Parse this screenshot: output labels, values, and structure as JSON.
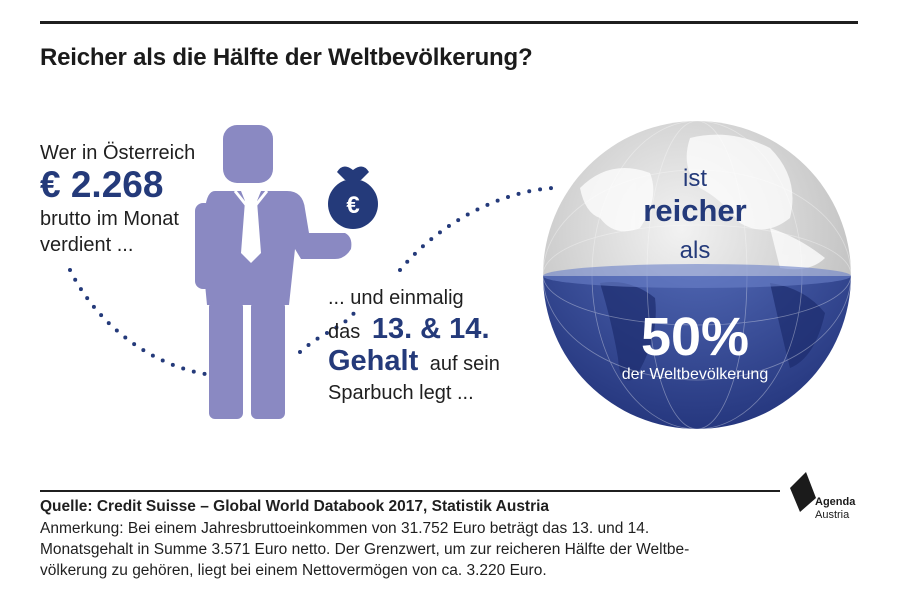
{
  "title": "Reicher als die Hälfte der Weltbevölkerung?",
  "left_text": {
    "line1": "Wer in Österreich",
    "amount": "€ 2.268",
    "line3": "brutto im Monat",
    "line4": "verdient ..."
  },
  "middle_text": {
    "line1": "... und einmalig",
    "line2_prefix": "das",
    "line2_big": "13. & 14.",
    "line3_big": "Gehalt",
    "line3_suffix": "auf sein",
    "line4": "Sparbuch legt ..."
  },
  "globe": {
    "ist": "ist",
    "reicher": "reicher",
    "als": "als",
    "percent": "50%",
    "sub": "der Weltbevölkerung"
  },
  "icons": {
    "money_bag_symbol": "€",
    "person": "person-icon",
    "globe": "globe-icon"
  },
  "footer": {
    "source": "Quelle: Credit Suisse – Global World Databook 2017, Statistik Austria",
    "note_line1": "Anmerkung: Bei einem Jahresbruttoeinkommen von 31.752 Euro beträgt das 13. und 14.",
    "note_line2": "Monatsgehalt in Summe 3.571 Euro netto. Der Grenzwert, um zur reicheren Hälfte der Weltbe-",
    "note_line3": "völkerung zu gehören, liegt bei einem Nettovermögen von ca. 3.220 Euro."
  },
  "logo": {
    "line1": "Agenda",
    "line2": "Austria"
  },
  "colors": {
    "accent": "#243a7a",
    "figure": "#8a89c2",
    "globe_lower": "#3f57a8",
    "globe_upper": "#d9d9d9"
  }
}
